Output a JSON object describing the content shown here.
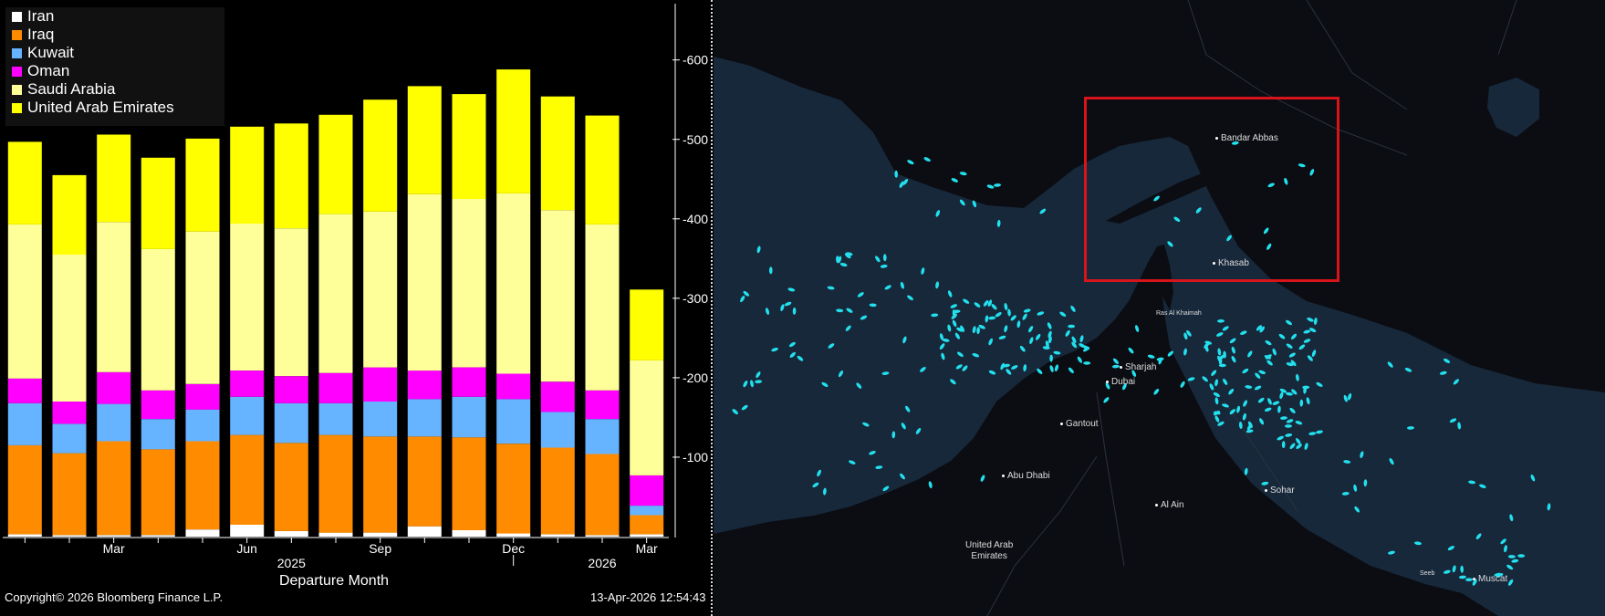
{
  "chart_data": {
    "type": "bar",
    "stacked": true,
    "categories": [
      "Jan 2025",
      "Feb 2025",
      "Mar 2025",
      "Apr 2025",
      "May 2025",
      "Jun 2025",
      "Jul 2025",
      "Aug 2025",
      "Sep 2025",
      "Oct 2025",
      "Nov 2025",
      "Dec 2025",
      "Jan 2026",
      "Feb 2026",
      "Mar 2026"
    ],
    "series": [
      {
        "name": "Iran",
        "color": "#ffffff",
        "values": [
          3,
          2,
          2,
          2,
          9,
          15,
          7,
          5,
          5,
          13,
          8,
          4,
          3,
          2,
          3
        ]
      },
      {
        "name": "Iraq",
        "color": "#ff8c00",
        "values": [
          112,
          103,
          118,
          108,
          111,
          113,
          111,
          123,
          121,
          113,
          117,
          113,
          109,
          102,
          24
        ]
      },
      {
        "name": "Kuwait",
        "color": "#66b3ff",
        "values": [
          53,
          37,
          47,
          38,
          40,
          48,
          50,
          40,
          44,
          47,
          51,
          56,
          45,
          44,
          12
        ]
      },
      {
        "name": "Oman",
        "color": "#ff00ff",
        "values": [
          31,
          28,
          40,
          36,
          32,
          33,
          34,
          38,
          43,
          36,
          37,
          32,
          38,
          36,
          38
        ]
      },
      {
        "name": "Saudi Arabia",
        "color": "#ffff99",
        "values": [
          194,
          185,
          189,
          178,
          192,
          185,
          186,
          200,
          196,
          222,
          212,
          227,
          216,
          209,
          145
        ]
      },
      {
        "name": "United Arab Emirates",
        "color": "#ffff00",
        "values": [
          104,
          100,
          110,
          115,
          117,
          122,
          132,
          125,
          141,
          136,
          132,
          156,
          143,
          137,
          89
        ]
      }
    ],
    "x_tick_labels": [
      {
        "text": "Mar",
        "index": 2
      },
      {
        "text": "Jun",
        "index": 5
      },
      {
        "text": "Sep",
        "index": 8
      },
      {
        "text": "Dec",
        "index": 11
      },
      {
        "text": "Mar",
        "index": 14
      }
    ],
    "year_labels": [
      {
        "text": "2025",
        "index": 6
      },
      {
        "text": "2026",
        "index": 13
      }
    ],
    "xlabel": "Departure Month",
    "ylabel": "",
    "ylim": [
      0,
      650
    ],
    "yticks": [
      100,
      200,
      300,
      400,
      500,
      600
    ],
    "legend": "top-left",
    "grid": false
  },
  "footer": {
    "copyright": "Copyright© 2026 Bloomberg Finance L.P.",
    "timestamp": "13-Apr-2026 12:54:43"
  },
  "map": {
    "land_color": "#0b0d12",
    "water_color": "#17283b",
    "vessel_color": "#22e0ee",
    "highlight_color": "#d8141b",
    "labels": {
      "bandar_abbas": "Bandar Abbas",
      "khasab": "Khasab",
      "ras_al_khaimah": "Ras Al Khaimah",
      "sharjah": "Sharjah",
      "dubai": "Dubai",
      "gantout": "Gantout",
      "abu_dhabi": "Abu Dhabi",
      "al_ain": "Al Ain",
      "sohar": "Sohar",
      "muscat": "Muscat",
      "seeb": "Seeb",
      "uae_line1": "United Arab",
      "uae_line2": "Emirates"
    }
  }
}
